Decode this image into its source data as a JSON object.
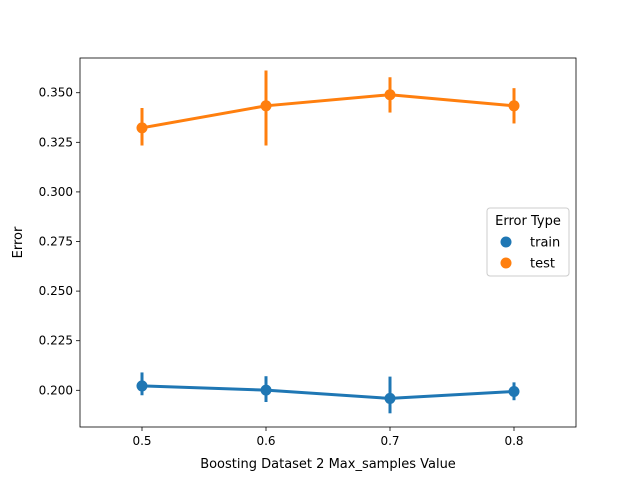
{
  "chart_data": {
    "type": "line",
    "title": "",
    "xlabel": "Boosting Dataset 2 Max_samples Value",
    "ylabel": "Error",
    "categories": [
      "0.5",
      "0.6",
      "0.7",
      "0.8"
    ],
    "ylim": [
      0.1815,
      0.3675
    ],
    "yticks": [
      0.2,
      0.225,
      0.25,
      0.275,
      0.3,
      0.325,
      0.35
    ],
    "ytick_labels": [
      "0.200",
      "0.225",
      "0.250",
      "0.275",
      "0.300",
      "0.325",
      "0.350"
    ],
    "grid": false,
    "legend": {
      "title": "Error Type",
      "placement": "center-right"
    },
    "series": [
      {
        "name": "train",
        "color": "#1f77b4",
        "values": [
          0.2022,
          0.2001,
          0.1959,
          0.1994
        ],
        "err_low": [
          0.1975,
          0.1941,
          0.1884,
          0.195
        ],
        "err_high": [
          0.209,
          0.2071,
          0.2069,
          0.204
        ]
      },
      {
        "name": "test",
        "color": "#ff7f0e",
        "values": [
          0.3323,
          0.3434,
          0.349,
          0.3434
        ],
        "err_low": [
          0.3234,
          0.3234,
          0.34,
          0.3345
        ],
        "err_high": [
          0.3423,
          0.3612,
          0.3578,
          0.3523
        ]
      }
    ]
  }
}
